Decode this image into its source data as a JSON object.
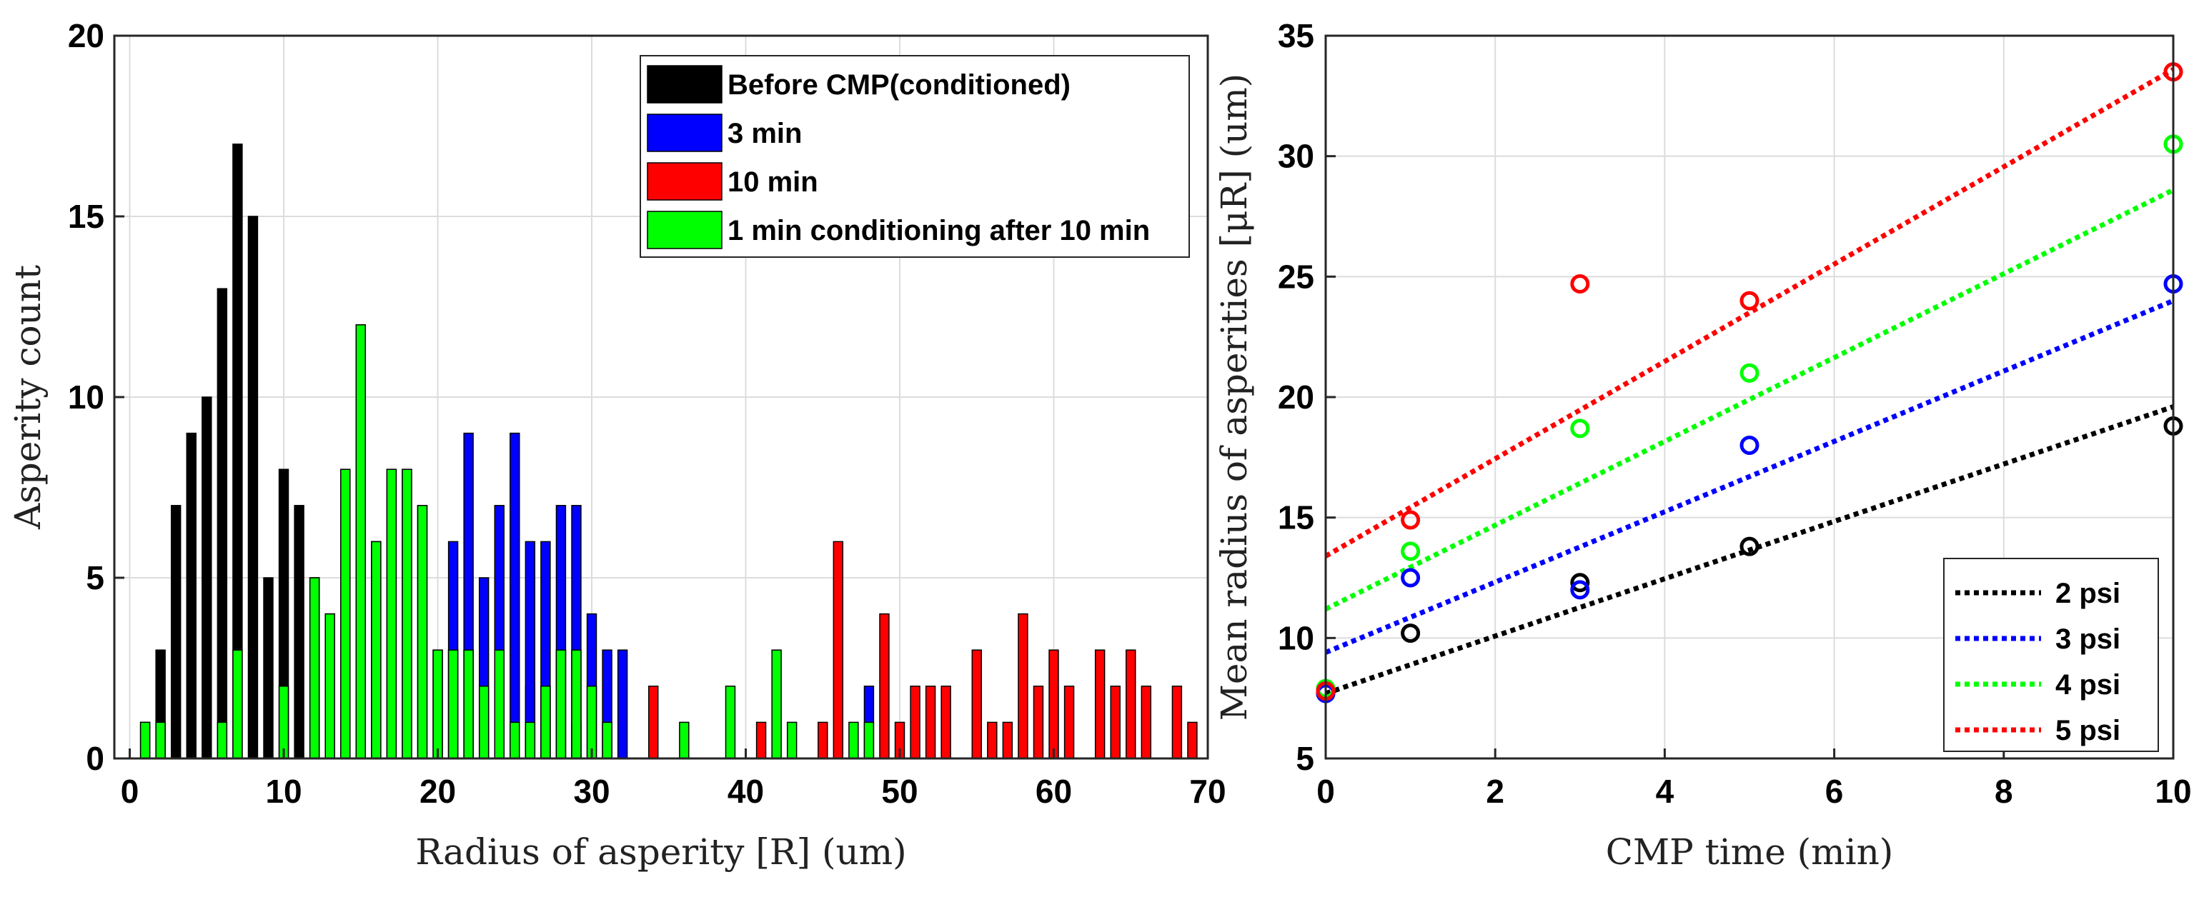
{
  "chart_data": [
    {
      "type": "bar",
      "title": "",
      "xlabel": "Radius of asperity [R] (um)",
      "ylabel": "Asperity count",
      "xlim": [
        -1,
        70
      ],
      "ylim": [
        0,
        20
      ],
      "xticks": [
        "0",
        "10",
        "20",
        "30",
        "40",
        "50",
        "60",
        "70"
      ],
      "yticks": [
        "0",
        "5",
        "10",
        "15",
        "20"
      ],
      "grid": true,
      "legend_position": "top-right",
      "series": [
        {
          "name": "Before CMP(conditioned)",
          "color": "#000000",
          "data": [
            [
              1,
              1
            ],
            [
              2,
              3
            ],
            [
              3,
              7
            ],
            [
              4,
              9
            ],
            [
              5,
              10
            ],
            [
              6,
              13
            ],
            [
              7,
              17
            ],
            [
              8,
              15
            ],
            [
              9,
              5
            ],
            [
              10,
              8
            ],
            [
              11,
              7
            ],
            [
              12,
              5
            ],
            [
              13,
              4
            ],
            [
              14,
              8
            ],
            [
              15,
              12
            ],
            [
              16,
              6
            ],
            [
              17,
              8
            ],
            [
              18,
              8
            ],
            [
              19,
              7
            ],
            [
              20,
              3
            ],
            [
              21,
              3
            ],
            [
              22,
              3
            ],
            [
              24,
              3
            ],
            [
              26,
              2
            ],
            [
              27,
              2
            ],
            [
              28,
              3
            ],
            [
              29,
              1
            ],
            [
              31,
              1
            ]
          ]
        },
        {
          "name": "3 min",
          "color": "#0000ff",
          "data": [
            [
              21,
              6
            ],
            [
              22,
              9
            ],
            [
              23,
              5
            ],
            [
              24,
              7
            ],
            [
              25,
              9
            ],
            [
              26,
              6
            ],
            [
              27,
              6
            ],
            [
              28,
              7
            ],
            [
              29,
              7
            ],
            [
              30,
              4
            ],
            [
              31,
              3
            ],
            [
              32,
              3
            ],
            [
              48,
              2
            ]
          ]
        },
        {
          "name": "10 min",
          "color": "#ff0000",
          "data": [
            [
              34,
              2
            ],
            [
              41,
              1
            ],
            [
              45,
              1
            ],
            [
              46,
              6
            ],
            [
              49,
              4
            ],
            [
              50,
              1
            ],
            [
              51,
              2
            ],
            [
              52,
              2
            ],
            [
              53,
              2
            ],
            [
              55,
              3
            ],
            [
              56,
              1
            ],
            [
              57,
              1
            ],
            [
              58,
              4
            ],
            [
              59,
              2
            ],
            [
              60,
              3
            ],
            [
              61,
              2
            ],
            [
              63,
              3
            ],
            [
              64,
              2
            ],
            [
              65,
              3
            ],
            [
              66,
              2
            ],
            [
              68,
              2
            ],
            [
              69,
              1
            ]
          ]
        },
        {
          "name": "1 min conditioning after 10 min",
          "color": "#00ff00",
          "data": [
            [
              1,
              1
            ],
            [
              2,
              1
            ],
            [
              6,
              1
            ],
            [
              7,
              3
            ],
            [
              10,
              2
            ],
            [
              12,
              5
            ],
            [
              13,
              4
            ],
            [
              14,
              8
            ],
            [
              15,
              12
            ],
            [
              16,
              6
            ],
            [
              17,
              8
            ],
            [
              18,
              8
            ],
            [
              19,
              7
            ],
            [
              20,
              3
            ],
            [
              21,
              3
            ],
            [
              22,
              3
            ],
            [
              23,
              2
            ],
            [
              24,
              3
            ],
            [
              25,
              1
            ],
            [
              26,
              1
            ],
            [
              27,
              2
            ],
            [
              28,
              3
            ],
            [
              29,
              3
            ],
            [
              30,
              2
            ],
            [
              31,
              1
            ],
            [
              36,
              1
            ],
            [
              39,
              2
            ],
            [
              42,
              3
            ],
            [
              43,
              1
            ],
            [
              47,
              1
            ],
            [
              48,
              1
            ]
          ]
        }
      ]
    },
    {
      "type": "scatter",
      "title": "",
      "xlabel": "CMP time (min)",
      "ylabel": "Mean radius of asperities [μR] (um)",
      "xlim": [
        0,
        10
      ],
      "ylim": [
        5,
        35
      ],
      "xticks": [
        "0",
        "2",
        "4",
        "6",
        "8",
        "10"
      ],
      "yticks": [
        "5",
        "10",
        "15",
        "20",
        "25",
        "30",
        "35"
      ],
      "grid": true,
      "legend_position": "bottom-right",
      "series": [
        {
          "name": "2 psi",
          "color": "#000000",
          "x": [
            0,
            1,
            3,
            5,
            10
          ],
          "y": [
            7.7,
            10.2,
            12.3,
            13.8,
            18.8
          ],
          "fit": [
            7.7,
            19.6
          ]
        },
        {
          "name": "3 psi",
          "color": "#0000ff",
          "x": [
            0,
            1,
            3,
            5,
            10
          ],
          "y": [
            7.7,
            12.5,
            12.0,
            18.0,
            24.7
          ],
          "fit": [
            9.4,
            24.0
          ]
        },
        {
          "name": "4 psi",
          "color": "#00ff00",
          "x": [
            0,
            1,
            3,
            5,
            10
          ],
          "y": [
            7.9,
            13.6,
            18.7,
            21.0,
            30.5
          ],
          "fit": [
            11.2,
            28.6
          ]
        },
        {
          "name": "5 psi",
          "color": "#ff0000",
          "x": [
            0,
            1,
            3,
            5,
            10
          ],
          "y": [
            7.8,
            14.9,
            24.7,
            24.0,
            33.5
          ],
          "fit": [
            13.4,
            33.6
          ]
        }
      ]
    }
  ]
}
